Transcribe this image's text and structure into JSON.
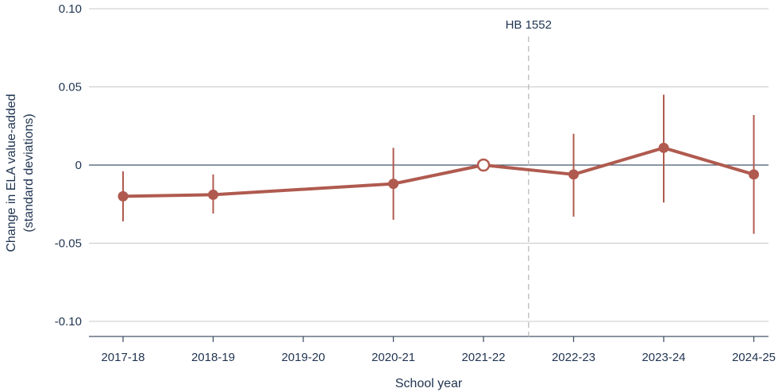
{
  "chart_data": {
    "type": "line",
    "xlabel": "School year",
    "ylabel_line1": "Change in ELA value-added",
    "ylabel_line2": "(standard deviations)",
    "ylim": [
      -0.11,
      0.1
    ],
    "yticks": [
      0.1,
      0.05,
      0,
      -0.05,
      -0.1
    ],
    "ytick_labels": [
      "0.10",
      "0.05",
      "0",
      "-0.05",
      "-0.10"
    ],
    "categories": [
      "2017-18",
      "2018-19",
      "2019-20",
      "2020-21",
      "2021-22",
      "2022-23",
      "2023-24",
      "2024-25"
    ],
    "series": [
      {
        "points": [
          {
            "x": "2017-18",
            "y": -0.02,
            "lo": -0.036,
            "hi": -0.004
          },
          {
            "x": "2018-19",
            "y": -0.019,
            "lo": -0.031,
            "hi": -0.006
          },
          {
            "x": "2020-21",
            "y": -0.012,
            "lo": -0.035,
            "hi": 0.011
          },
          {
            "x": "2021-22",
            "y": 0.0,
            "reference": true
          },
          {
            "x": "2022-23",
            "y": -0.006,
            "lo": -0.033,
            "hi": 0.02
          },
          {
            "x": "2023-24",
            "y": 0.011,
            "lo": -0.024,
            "hi": 0.045
          },
          {
            "x": "2024-25",
            "y": -0.006,
            "lo": -0.044,
            "hi": 0.032
          }
        ]
      }
    ],
    "annotation": {
      "label": "HB 1552",
      "between": [
        "2021-22",
        "2022-23"
      ]
    },
    "grid": true,
    "colors": {
      "series": "#b05a4f",
      "text": "#1f3350",
      "grid": "#c8c8c8",
      "zero": "#44546a",
      "vline": "#bbbbbb"
    }
  }
}
